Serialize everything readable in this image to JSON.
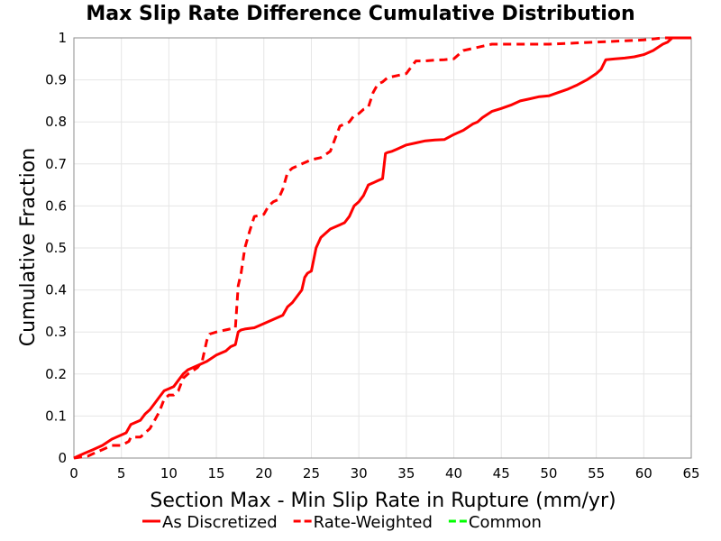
{
  "chart_data": {
    "type": "line",
    "title": "Max Slip Rate Difference Cumulative Distribution",
    "xlabel": "Section Max - Min Slip Rate in Rupture (mm/yr)",
    "ylabel": "Cumulative Fraction",
    "xlim": [
      0,
      65
    ],
    "ylim": [
      0,
      1
    ],
    "x_ticks": [
      0,
      5,
      10,
      15,
      20,
      25,
      30,
      35,
      40,
      45,
      50,
      55,
      60,
      65
    ],
    "y_ticks": [
      0,
      0.1,
      0.2,
      0.3,
      0.4,
      0.5,
      0.6,
      0.7,
      0.8,
      0.9,
      1
    ],
    "y_tick_labels": [
      "0",
      "0.1",
      "0.2",
      "0.3",
      "0.4",
      "0.5",
      "0.6",
      "0.7",
      "0.8",
      "0.9",
      "1"
    ],
    "grid": true,
    "legend_position": "bottom",
    "series": [
      {
        "name": "As Discretized",
        "color": "#ff0000",
        "style": "solid",
        "x": [
          0,
          1,
          2,
          3,
          4,
          5,
          5.5,
          6,
          7,
          7.5,
          8,
          8.5,
          9,
          9.5,
          10,
          10.5,
          11,
          11.5,
          12,
          13,
          14,
          15,
          15.5,
          16,
          16.5,
          17,
          17.3,
          17.6,
          18,
          19,
          20,
          21,
          22,
          22.5,
          23,
          24,
          24.3,
          24.6,
          25,
          25.5,
          26,
          27,
          28,
          28.5,
          29,
          29.5,
          30,
          30.5,
          31,
          31.5,
          32,
          32.5,
          32.8,
          33,
          33.5,
          34,
          35,
          36,
          37,
          38,
          39,
          40,
          41,
          42,
          42.5,
          43,
          44,
          45,
          46,
          47,
          48,
          49,
          50,
          51,
          52,
          53,
          54,
          55,
          55.5,
          56,
          57,
          58,
          59,
          60,
          61,
          62,
          62.5,
          63,
          65
        ],
        "values": [
          0,
          0.01,
          0.02,
          0.03,
          0.045,
          0.055,
          0.06,
          0.08,
          0.09,
          0.105,
          0.115,
          0.13,
          0.145,
          0.16,
          0.165,
          0.17,
          0.185,
          0.2,
          0.21,
          0.22,
          0.23,
          0.245,
          0.25,
          0.255,
          0.265,
          0.27,
          0.3,
          0.305,
          0.307,
          0.31,
          0.32,
          0.33,
          0.34,
          0.36,
          0.37,
          0.4,
          0.43,
          0.44,
          0.445,
          0.5,
          0.525,
          0.545,
          0.555,
          0.56,
          0.575,
          0.6,
          0.61,
          0.625,
          0.65,
          0.655,
          0.66,
          0.665,
          0.725,
          0.727,
          0.73,
          0.735,
          0.745,
          0.75,
          0.755,
          0.757,
          0.758,
          0.77,
          0.78,
          0.795,
          0.8,
          0.81,
          0.825,
          0.832,
          0.84,
          0.85,
          0.855,
          0.86,
          0.862,
          0.87,
          0.878,
          0.888,
          0.9,
          0.915,
          0.925,
          0.948,
          0.95,
          0.952,
          0.955,
          0.96,
          0.97,
          0.985,
          0.99,
          1.0,
          1.0
        ]
      },
      {
        "name": "Rate-Weighted",
        "color": "#ff0000",
        "style": "dashed",
        "x": [
          0,
          1.5,
          2,
          3,
          3.5,
          4,
          5,
          5.8,
          6,
          7,
          7.5,
          8,
          8.5,
          9,
          9.5,
          10,
          10.5,
          11,
          11.5,
          12,
          13,
          13.5,
          14,
          14.3,
          15,
          16,
          17,
          17.3,
          17.6,
          18,
          18.5,
          19,
          20,
          20.5,
          21,
          21.5,
          22,
          22.5,
          23,
          24,
          25,
          26,
          27,
          27.5,
          28,
          29,
          29.5,
          30,
          30.5,
          31,
          31.5,
          32,
          32.5,
          33,
          34,
          35,
          36,
          37,
          38,
          39,
          40,
          41,
          42,
          43,
          44,
          45,
          50,
          55,
          60,
          62,
          65
        ],
        "values": [
          0,
          0.005,
          0.01,
          0.02,
          0.025,
          0.03,
          0.03,
          0.04,
          0.05,
          0.05,
          0.06,
          0.07,
          0.09,
          0.11,
          0.14,
          0.15,
          0.15,
          0.16,
          0.19,
          0.2,
          0.215,
          0.23,
          0.28,
          0.295,
          0.3,
          0.305,
          0.31,
          0.41,
          0.44,
          0.5,
          0.54,
          0.575,
          0.58,
          0.6,
          0.61,
          0.615,
          0.64,
          0.68,
          0.69,
          0.7,
          0.71,
          0.715,
          0.73,
          0.76,
          0.79,
          0.8,
          0.815,
          0.82,
          0.83,
          0.835,
          0.87,
          0.89,
          0.895,
          0.905,
          0.91,
          0.915,
          0.945,
          0.945,
          0.947,
          0.948,
          0.95,
          0.97,
          0.975,
          0.98,
          0.985,
          0.985,
          0.985,
          0.99,
          0.995,
          1.0,
          1.0
        ]
      },
      {
        "name": "Common",
        "color": "#00ff00",
        "style": "dashed",
        "x": [],
        "values": []
      }
    ]
  }
}
